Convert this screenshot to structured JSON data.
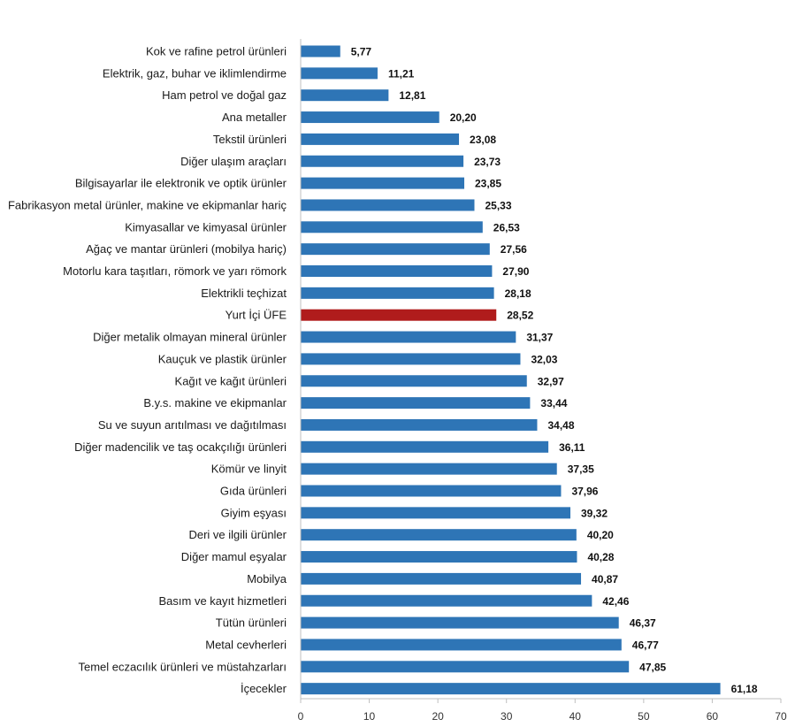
{
  "chart_data": {
    "type": "bar",
    "orientation": "horizontal",
    "title": "",
    "xlabel": "",
    "ylabel": "",
    "xlim": [
      0,
      70
    ],
    "ticks": [
      0,
      10,
      20,
      30,
      40,
      50,
      60,
      70
    ],
    "grid": false,
    "legend": "none",
    "colors": {
      "default": "#2e75b6",
      "highlight": "#b01c1c"
    },
    "highlight_category": "Yurt İçi ÜFE",
    "categories": [
      "Kok ve rafine petrol ürünleri",
      "Elektrik, gaz, buhar ve iklimlendirme",
      "Ham petrol ve doğal gaz",
      "Ana metaller",
      "Tekstil ürünleri",
      "Diğer ulaşım araçları",
      "Bilgisayarlar ile elektronik ve optik ürünler",
      "Fabrikasyon metal ürünler, makine ve ekipmanlar hariç",
      "Kimyasallar ve kimyasal ürünler",
      "Ağaç ve mantar ürünleri (mobilya hariç)",
      "Motorlu kara taşıtları, römork ve yarı römork",
      "Elektrikli teçhizat",
      "Yurt İçi ÜFE",
      "Diğer metalik olmayan mineral ürünler",
      "Kauçuk ve plastik ürünler",
      "Kağıt ve kağıt ürünleri",
      "B.y.s. makine ve ekipmanlar",
      "Su ve suyun arıtılması ve dağıtılması",
      "Diğer madencilik ve taş ocakçılığı ürünleri",
      "Kömür ve linyit",
      "Gıda ürünleri",
      "Giyim eşyası",
      "Deri ve ilgili ürünler",
      "Diğer mamul eşyalar",
      "Mobilya",
      "Basım ve kayıt hizmetleri",
      "Tütün ürünleri",
      "Metal cevherleri",
      "Temel eczacılık ürünleri ve müstahzarları",
      "İçecekler"
    ],
    "values": [
      5.77,
      11.21,
      12.81,
      20.2,
      23.08,
      23.73,
      23.85,
      25.33,
      26.53,
      27.56,
      27.9,
      28.18,
      28.52,
      31.37,
      32.03,
      32.97,
      33.44,
      34.48,
      36.11,
      37.35,
      37.96,
      39.32,
      40.2,
      40.28,
      40.87,
      42.46,
      46.37,
      46.77,
      47.85,
      61.18
    ],
    "value_labels": [
      "5,77",
      "11,21",
      "12,81",
      "20,20",
      "23,08",
      "23,73",
      "23,85",
      "25,33",
      "26,53",
      "27,56",
      "27,90",
      "28,18",
      "28,52",
      "31,37",
      "32,03",
      "32,97",
      "33,44",
      "34,48",
      "36,11",
      "37,35",
      "37,96",
      "39,32",
      "40,20",
      "40,28",
      "40,87",
      "42,46",
      "46,37",
      "46,77",
      "47,85",
      "61,18"
    ]
  }
}
